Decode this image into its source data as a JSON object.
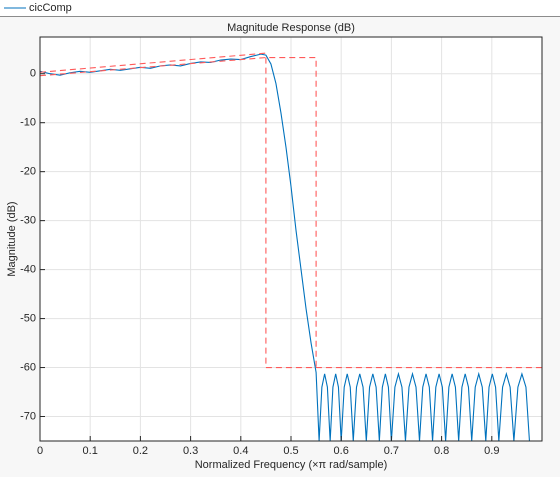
{
  "chart_data": {
    "type": "line",
    "title": "Magnitude Response (dB)",
    "x_label": "Normalized Frequency  (×π rad/sample)",
    "y_label": "Magnitude (dB)",
    "xlim": [
      0,
      1
    ],
    "ylim": [
      -75,
      7.5
    ],
    "xticks": [
      0,
      0.1,
      0.2,
      0.3,
      0.4,
      0.5,
      0.6,
      0.7,
      0.8,
      0.9
    ],
    "yticks": [
      0,
      -10,
      -20,
      -30,
      -40,
      -50,
      -60,
      -70
    ],
    "grid": true,
    "legend": "top-left",
    "series": [
      {
        "name": "cicComp",
        "color": "#0072bd",
        "x": [
          0,
          0.02,
          0.04,
          0.06,
          0.08,
          0.1,
          0.12,
          0.14,
          0.16,
          0.18,
          0.2,
          0.22,
          0.24,
          0.26,
          0.28,
          0.3,
          0.32,
          0.34,
          0.36,
          0.38,
          0.4,
          0.42,
          0.44,
          0.45,
          0.46,
          0.47,
          0.48,
          0.49,
          0.5,
          0.51,
          0.52,
          0.53,
          0.54,
          0.55,
          0.556,
          0.5615,
          0.567,
          0.5725,
          0.578,
          0.5835,
          0.589,
          0.5945,
          0.6,
          0.606,
          0.612,
          0.618,
          0.624,
          0.6305,
          0.637,
          0.6435,
          0.65,
          0.6565,
          0.663,
          0.6695,
          0.676,
          0.682,
          0.688,
          0.694,
          0.7,
          0.707,
          0.714,
          0.721,
          0.728,
          0.735,
          0.742,
          0.749,
          0.756,
          0.7625,
          0.769,
          0.7755,
          0.782,
          0.7885,
          0.795,
          0.8015,
          0.808,
          0.8145,
          0.821,
          0.8275,
          0.834,
          0.8405,
          0.847,
          0.8535,
          0.86,
          0.867,
          0.874,
          0.881,
          0.888,
          0.8945,
          0.901,
          0.9075,
          0.914,
          0.9215,
          0.929,
          0.9365,
          0.944,
          0.952,
          0.96,
          0.968,
          0.975
        ],
        "values": [
          0.5,
          0,
          -0.3,
          0.2,
          0.5,
          0.3,
          0.6,
          0.9,
          0.7,
          1.0,
          1.3,
          1.1,
          1.6,
          1.8,
          1.6,
          2.1,
          2.4,
          2.3,
          2.8,
          3.0,
          2.9,
          3.5,
          4.0,
          3.8,
          2,
          -2,
          -8,
          -15,
          -23,
          -32,
          -40,
          -48,
          -55,
          -61,
          -75,
          -64,
          -61.3,
          -64,
          -75,
          -64,
          -61.3,
          -64,
          -75,
          -64,
          -61.3,
          -64,
          -75,
          -64,
          -61.3,
          -64,
          -75,
          -64,
          -61.3,
          -64,
          -75,
          -64,
          -61.3,
          -64,
          -75,
          -64,
          -61.3,
          -64,
          -75,
          -64,
          -61.3,
          -64,
          -75,
          -64,
          -61.3,
          -64,
          -75,
          -64,
          -61.3,
          -64,
          -75,
          -64,
          -61.3,
          -64,
          -75,
          -64,
          -61.3,
          -64,
          -75,
          -64,
          -61.3,
          -64,
          -75,
          -64,
          -61.3,
          -64,
          -75,
          -64,
          -61.3,
          -64,
          -75,
          -64,
          -61.3,
          -64,
          -75
        ]
      },
      {
        "color": "#ff5a5a",
        "dashed": true,
        "x": [
          0,
          0.45,
          0.45,
          0,
          0.45,
          0.55,
          0.55,
          0.55,
          0.45,
          0.45,
          1
        ],
        "values": [
          0.3,
          4.2,
          null,
          -0.4,
          3.3,
          3.3,
          -60,
          null,
          3.3,
          -60,
          -60
        ]
      }
    ]
  }
}
